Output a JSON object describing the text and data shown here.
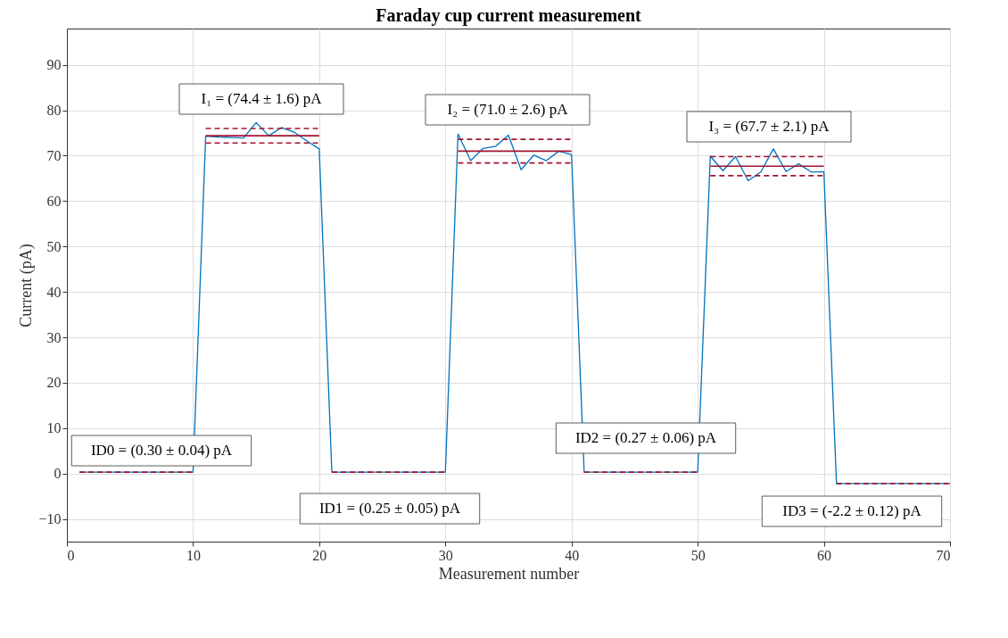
{
  "chart_data": {
    "type": "line",
    "title": "Faraday cup current measurement",
    "xlabel": "Measurement number",
    "ylabel": "Current (pA)",
    "xlim": [
      0,
      70
    ],
    "xticks": [
      0,
      10,
      20,
      30,
      40,
      50,
      60,
      70
    ],
    "ylim": [
      -15,
      98
    ],
    "yticks": [
      -10,
      0,
      10,
      20,
      30,
      40,
      50,
      60,
      70,
      80,
      90
    ],
    "grid": true,
    "marker": "none",
    "line_style": "solid",
    "series": [
      {
        "color": "#0072bd",
        "x": [
          1,
          2,
          3,
          4,
          5,
          6,
          7,
          8,
          9,
          10,
          11,
          12,
          13,
          14,
          15,
          16,
          17,
          18,
          19,
          20,
          21,
          22,
          23,
          24,
          25,
          26,
          27,
          28,
          29,
          30,
          31,
          32,
          33,
          34,
          35,
          36,
          37,
          38,
          39,
          40,
          41,
          42,
          43,
          44,
          45,
          46,
          47,
          48,
          49,
          50,
          51,
          52,
          53,
          54,
          55,
          56,
          57,
          58,
          59,
          60,
          61,
          62,
          63,
          64,
          65,
          66,
          67,
          68,
          69,
          70
        ],
        "values": [
          0.3,
          0.3,
          0.3,
          0.3,
          0.3,
          0.3,
          0.3,
          0.3,
          0.3,
          0.3,
          74.3,
          74.1,
          74.0,
          73.9,
          77.3,
          74.4,
          76.2,
          75.2,
          73.3,
          71.5,
          0.3,
          0.3,
          0.3,
          0.3,
          0.3,
          0.3,
          0.3,
          0.3,
          0.3,
          0.3,
          74.8,
          68.9,
          71.6,
          72.1,
          74.5,
          66.9,
          70.1,
          68.9,
          71.0,
          70.2,
          0.3,
          0.3,
          0.3,
          0.3,
          0.3,
          0.3,
          0.3,
          0.3,
          0.3,
          0.3,
          69.9,
          66.7,
          69.8,
          64.5,
          66.4,
          71.5,
          66.5,
          68.2,
          66.4,
          66.5,
          -2.2,
          -2.2,
          -2.2,
          -2.2,
          -2.2,
          -2.2,
          -2.2,
          -2.2,
          -2.2,
          -2.2
        ]
      },
      {
        "color": "#a2142f",
        "line_style": "dashed",
        "x": [
          1,
          10
        ],
        "values": [
          0.3,
          0.3
        ]
      },
      {
        "color": "#a2142f",
        "line_style": "solid",
        "x": [
          11,
          20
        ],
        "values": [
          74.4,
          74.4
        ]
      },
      {
        "color": "#a2142f",
        "line_style": "dashed",
        "x": [
          11,
          20
        ],
        "values": [
          76.0,
          76.0
        ]
      },
      {
        "color": "#a2142f",
        "line_style": "dashed",
        "x": [
          11,
          20
        ],
        "values": [
          72.8,
          72.8
        ]
      },
      {
        "color": "#a2142f",
        "line_style": "dashed",
        "x": [
          21,
          30
        ],
        "values": [
          0.3,
          0.3
        ]
      },
      {
        "color": "#a2142f",
        "line_style": "solid",
        "x": [
          31,
          40
        ],
        "values": [
          71.0,
          71.0
        ]
      },
      {
        "color": "#a2142f",
        "line_style": "dashed",
        "x": [
          31,
          40
        ],
        "values": [
          73.6,
          73.6
        ]
      },
      {
        "color": "#a2142f",
        "line_style": "dashed",
        "x": [
          31,
          40
        ],
        "values": [
          68.4,
          68.4
        ]
      },
      {
        "color": "#a2142f",
        "line_style": "dashed",
        "x": [
          41,
          50
        ],
        "values": [
          0.3,
          0.3
        ]
      },
      {
        "color": "#a2142f",
        "line_style": "solid",
        "x": [
          51,
          60
        ],
        "values": [
          67.7,
          67.7
        ]
      },
      {
        "color": "#a2142f",
        "line_style": "dashed",
        "x": [
          51,
          60
        ],
        "values": [
          69.8,
          69.8
        ]
      },
      {
        "color": "#a2142f",
        "line_style": "dashed",
        "x": [
          51,
          60
        ],
        "values": [
          65.6,
          65.6
        ]
      },
      {
        "color": "#a2142f",
        "line_style": "dashed",
        "x": [
          61,
          70
        ],
        "values": [
          -2.2,
          -2.2
        ]
      }
    ],
    "annotations": [
      "I₁ = (74.4 ± 1.6) pA",
      "I₂ = (71.0 ± 2.6) pA",
      "I₃ = (67.7 ± 2.1) pA",
      "ID0 = (0.30 ± 0.04) pA",
      "ID1 = (0.25 ± 0.05) pA",
      "ID2 = (0.27 ± 0.06) pA",
      "ID3 = (-2.2 ± 0.12) pA"
    ]
  }
}
